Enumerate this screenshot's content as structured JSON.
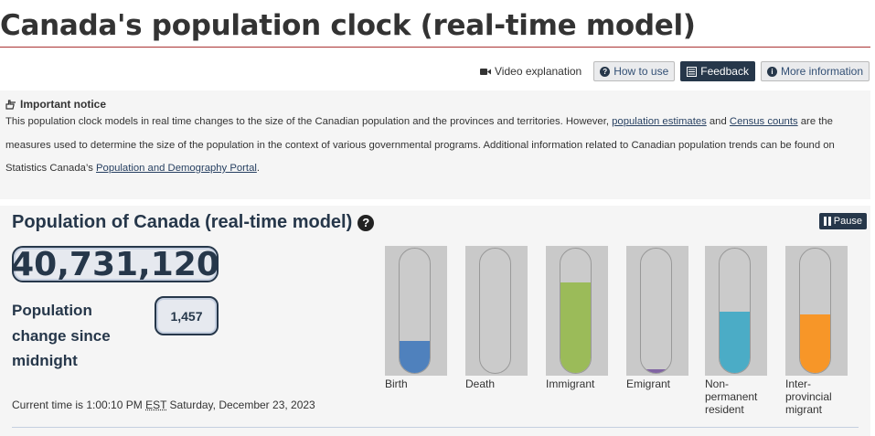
{
  "header": {
    "title": "Canada's population clock (real-time model)"
  },
  "toolbar": {
    "video": "Video explanation",
    "how_to_use": "How to use",
    "feedback": "Feedback",
    "more_info": "More information"
  },
  "notice": {
    "heading": "Important notice",
    "text_1": "This population clock models in real time changes to the size of the Canadian population and the provinces and territories. However, ",
    "link_1": "population estimates",
    "text_2": " and ",
    "link_2": "Census counts",
    "text_3": " are the measures used to determine the size of the population in the context of various governmental programs. Additional information related to Canadian population trends can be found on Statistics Canada’s ",
    "link_3": "Population and Demography Portal",
    "text_4": "."
  },
  "panel": {
    "title": "Population of Canada (real-time model)",
    "pause": "Pause",
    "population": "40,731,120",
    "change_label": "Population change since midnight",
    "change_value": "1,457",
    "time_prefix": "Current time is 1:00:10 PM ",
    "time_zone": "EST",
    "time_suffix": " Saturday, December 23, 2023"
  },
  "tubes": [
    {
      "label": "Birth",
      "level": 0.26,
      "color": "#4f81bd"
    },
    {
      "label": "Death",
      "level": 0.0,
      "color": "#7f7f7f"
    },
    {
      "label": "Immigrant",
      "level": 0.73,
      "color": "#9bbb59"
    },
    {
      "label": "Emigrant",
      "level": 0.03,
      "color": "#8064a2"
    },
    {
      "label": "Non-permanent resident",
      "level": 0.49,
      "color": "#4bacc6"
    },
    {
      "label": "Inter-provincial migrant",
      "level": 0.47,
      "color": "#f79628"
    }
  ]
}
